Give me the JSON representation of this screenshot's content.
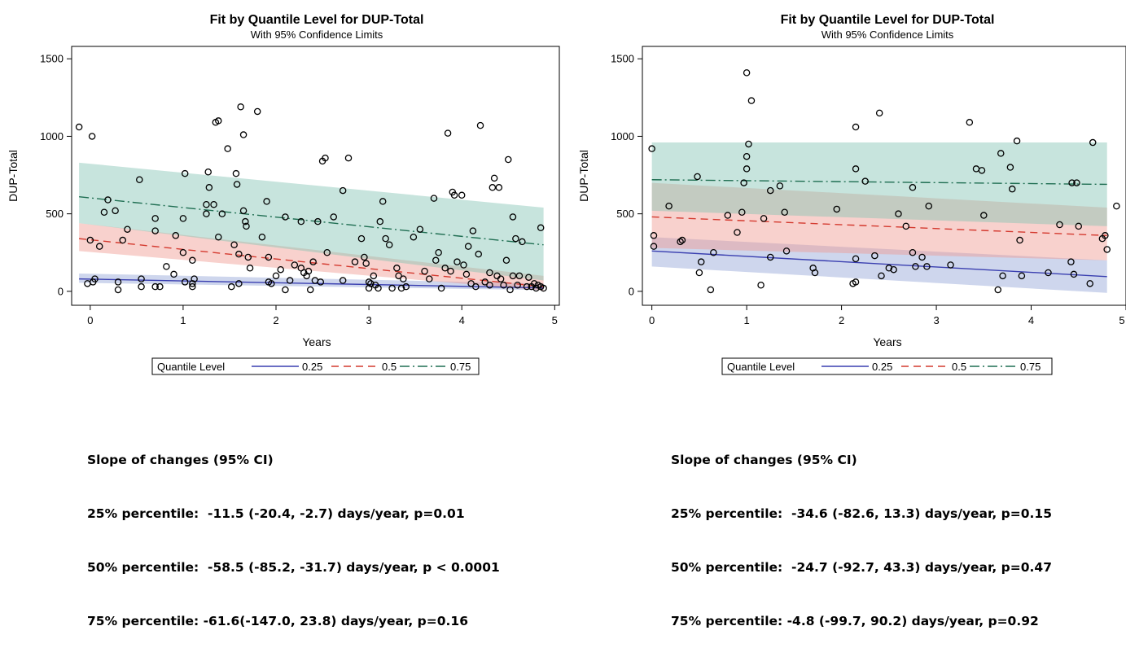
{
  "chart_data": [
    {
      "type": "scatter",
      "title": "Fit by Quantile Level for DUP-Total",
      "subtitle": "With 95% Confidence Limits",
      "xlabel": "Years",
      "ylabel": "DUP-Total",
      "xlim": [
        -0.2,
        5.05
      ],
      "ylim": [
        -90,
        1580
      ],
      "xticks": [
        "0",
        "1",
        "2",
        "3",
        "4",
        "5"
      ],
      "yticks": [
        "0",
        "500",
        "1000",
        "1500"
      ],
      "legend_title": "Quantile Level",
      "legend_position": "bottom",
      "fits": [
        {
          "name": "0.25",
          "color": "#3a3fb0",
          "dash": "solid",
          "x": [
            -0.12,
            4.88
          ],
          "y": [
            80,
            22
          ],
          "band_low": [
            55,
            8
          ],
          "band_high": [
            115,
            50
          ],
          "band_color": "#93a3d8"
        },
        {
          "name": "0.5",
          "color": "#d43a2f",
          "dash": "dashed",
          "x": [
            -0.12,
            4.88
          ],
          "y": [
            340,
            30
          ],
          "band_low": [
            260,
            5
          ],
          "band_high": [
            440,
            100
          ],
          "band_color": "#ef9a90"
        },
        {
          "name": "0.75",
          "color": "#1f6e52",
          "dash": "dashdot",
          "x": [
            -0.12,
            4.88
          ],
          "y": [
            610,
            300
          ],
          "band_low": [
            440,
            70
          ],
          "band_high": [
            830,
            540
          ],
          "band_color": "#82c3b4"
        }
      ],
      "points": [
        [
          -0.12,
          1060
        ],
        [
          0.02,
          1000
        ],
        [
          -0.03,
          50
        ],
        [
          0.0,
          330
        ],
        [
          0.03,
          60
        ],
        [
          0.05,
          80
        ],
        [
          0.1,
          290
        ],
        [
          0.15,
          510
        ],
        [
          0.19,
          590
        ],
        [
          0.27,
          520
        ],
        [
          0.3,
          60
        ],
        [
          0.3,
          10
        ],
        [
          0.35,
          330
        ],
        [
          0.4,
          400
        ],
        [
          0.53,
          720
        ],
        [
          0.55,
          80
        ],
        [
          0.55,
          30
        ],
        [
          0.7,
          470
        ],
        [
          0.7,
          390
        ],
        [
          0.7,
          30
        ],
        [
          0.75,
          30
        ],
        [
          0.82,
          160
        ],
        [
          0.9,
          110
        ],
        [
          0.92,
          360
        ],
        [
          1.0,
          470
        ],
        [
          1.02,
          760
        ],
        [
          1.0,
          250
        ],
        [
          1.02,
          60
        ],
        [
          1.1,
          200
        ],
        [
          1.1,
          30
        ],
        [
          1.1,
          50
        ],
        [
          1.12,
          80
        ],
        [
          1.25,
          560
        ],
        [
          1.25,
          500
        ],
        [
          1.27,
          770
        ],
        [
          1.28,
          670
        ],
        [
          1.33,
          560
        ],
        [
          1.35,
          1090
        ],
        [
          1.38,
          1100
        ],
        [
          1.38,
          350
        ],
        [
          1.42,
          500
        ],
        [
          1.48,
          920
        ],
        [
          1.52,
          30
        ],
        [
          1.55,
          300
        ],
        [
          1.57,
          760
        ],
        [
          1.58,
          690
        ],
        [
          1.6,
          240
        ],
        [
          1.6,
          50
        ],
        [
          1.62,
          1190
        ],
        [
          1.65,
          1010
        ],
        [
          1.65,
          520
        ],
        [
          1.67,
          450
        ],
        [
          1.68,
          420
        ],
        [
          1.7,
          220
        ],
        [
          1.72,
          150
        ],
        [
          1.8,
          1160
        ],
        [
          1.85,
          350
        ],
        [
          1.9,
          580
        ],
        [
          1.92,
          60
        ],
        [
          1.92,
          220
        ],
        [
          1.95,
          50
        ],
        [
          2.0,
          100
        ],
        [
          2.05,
          140
        ],
        [
          2.1,
          10
        ],
        [
          2.1,
          480
        ],
        [
          2.15,
          70
        ],
        [
          2.2,
          170
        ],
        [
          2.27,
          450
        ],
        [
          2.27,
          150
        ],
        [
          2.3,
          120
        ],
        [
          2.33,
          100
        ],
        [
          2.35,
          130
        ],
        [
          2.37,
          10
        ],
        [
          2.4,
          190
        ],
        [
          2.42,
          70
        ],
        [
          2.45,
          450
        ],
        [
          2.48,
          60
        ],
        [
          2.5,
          840
        ],
        [
          2.53,
          860
        ],
        [
          2.55,
          250
        ],
        [
          2.62,
          480
        ],
        [
          2.72,
          650
        ],
        [
          2.72,
          70
        ],
        [
          2.78,
          860
        ],
        [
          2.85,
          190
        ],
        [
          2.92,
          340
        ],
        [
          2.95,
          220
        ],
        [
          2.97,
          180
        ],
        [
          3.0,
          60
        ],
        [
          3.0,
          20
        ],
        [
          3.02,
          50
        ],
        [
          3.05,
          100
        ],
        [
          3.07,
          40
        ],
        [
          3.1,
          20
        ],
        [
          3.12,
          450
        ],
        [
          3.15,
          580
        ],
        [
          3.18,
          340
        ],
        [
          3.22,
          300
        ],
        [
          3.25,
          20
        ],
        [
          3.3,
          150
        ],
        [
          3.32,
          100
        ],
        [
          3.35,
          20
        ],
        [
          3.37,
          80
        ],
        [
          3.4,
          30
        ],
        [
          3.48,
          350
        ],
        [
          3.55,
          400
        ],
        [
          3.6,
          130
        ],
        [
          3.65,
          80
        ],
        [
          3.7,
          600
        ],
        [
          3.72,
          200
        ],
        [
          3.75,
          250
        ],
        [
          3.78,
          20
        ],
        [
          3.82,
          150
        ],
        [
          3.85,
          1020
        ],
        [
          3.88,
          130
        ],
        [
          3.9,
          640
        ],
        [
          3.92,
          620
        ],
        [
          3.95,
          190
        ],
        [
          4.0,
          620
        ],
        [
          4.02,
          170
        ],
        [
          4.05,
          110
        ],
        [
          4.07,
          290
        ],
        [
          4.1,
          50
        ],
        [
          4.12,
          390
        ],
        [
          4.15,
          30
        ],
        [
          4.18,
          240
        ],
        [
          4.2,
          1070
        ],
        [
          4.25,
          60
        ],
        [
          4.3,
          120
        ],
        [
          4.3,
          40
        ],
        [
          4.33,
          670
        ],
        [
          4.35,
          730
        ],
        [
          4.38,
          100
        ],
        [
          4.4,
          670
        ],
        [
          4.42,
          80
        ],
        [
          4.45,
          40
        ],
        [
          4.48,
          200
        ],
        [
          4.5,
          850
        ],
        [
          4.52,
          10
        ],
        [
          4.55,
          480
        ],
        [
          4.55,
          100
        ],
        [
          4.58,
          340
        ],
        [
          4.6,
          40
        ],
        [
          4.62,
          100
        ],
        [
          4.65,
          320
        ],
        [
          4.7,
          30
        ],
        [
          4.72,
          90
        ],
        [
          4.75,
          30
        ],
        [
          4.78,
          50
        ],
        [
          4.8,
          20
        ],
        [
          4.82,
          40
        ],
        [
          4.85,
          30
        ],
        [
          4.85,
          410
        ],
        [
          4.88,
          20
        ]
      ]
    },
    {
      "type": "scatter",
      "title": "Fit by Quantile Level for DUP-Total",
      "subtitle": "With 95% Confidence Limits",
      "xlabel": "Years",
      "ylabel": "DUP-Total",
      "xlim": [
        -0.1,
        5.0
      ],
      "ylim": [
        -90,
        1580
      ],
      "xticks": [
        "0",
        "1",
        "2",
        "3",
        "4",
        "5"
      ],
      "yticks": [
        "0",
        "500",
        "1000",
        "1500"
      ],
      "legend_title": "Quantile Level",
      "legend_position": "bottom",
      "fits": [
        {
          "name": "0.25",
          "color": "#3a3fb0",
          "dash": "solid",
          "x": [
            0.0,
            4.8
          ],
          "y": [
            260,
            95
          ],
          "band_low": [
            160,
            -10
          ],
          "band_high": [
            350,
            200
          ],
          "band_color": "#93a3d8"
        },
        {
          "name": "0.5",
          "color": "#d43a2f",
          "dash": "dashed",
          "x": [
            0.0,
            4.8
          ],
          "y": [
            480,
            360
          ],
          "band_low": [
            280,
            200
          ],
          "band_high": [
            700,
            540
          ],
          "band_color": "#ef9a90"
        },
        {
          "name": "0.75",
          "color": "#1f6e52",
          "dash": "dashdot",
          "x": [
            0.0,
            4.8
          ],
          "y": [
            720,
            690
          ],
          "band_low": [
            520,
            420
          ],
          "band_high": [
            960,
            960
          ],
          "band_color": "#82c3b4"
        }
      ],
      "points": [
        [
          0.0,
          920
        ],
        [
          0.02,
          360
        ],
        [
          0.02,
          290
        ],
        [
          0.18,
          550
        ],
        [
          0.3,
          320
        ],
        [
          0.32,
          330
        ],
        [
          0.48,
          740
        ],
        [
          0.5,
          120
        ],
        [
          0.52,
          190
        ],
        [
          0.62,
          10
        ],
        [
          0.65,
          250
        ],
        [
          0.8,
          490
        ],
        [
          0.9,
          380
        ],
        [
          0.95,
          510
        ],
        [
          0.97,
          700
        ],
        [
          1.0,
          790
        ],
        [
          1.0,
          870
        ],
        [
          1.0,
          1410
        ],
        [
          1.02,
          950
        ],
        [
          1.05,
          1230
        ],
        [
          1.15,
          40
        ],
        [
          1.18,
          470
        ],
        [
          1.25,
          220
        ],
        [
          1.25,
          650
        ],
        [
          1.35,
          680
        ],
        [
          1.4,
          510
        ],
        [
          1.42,
          260
        ],
        [
          1.7,
          150
        ],
        [
          1.72,
          120
        ],
        [
          1.95,
          530
        ],
        [
          2.12,
          50
        ],
        [
          2.15,
          60
        ],
        [
          2.15,
          210
        ],
        [
          2.15,
          790
        ],
        [
          2.15,
          1060
        ],
        [
          2.25,
          710
        ],
        [
          2.35,
          230
        ],
        [
          2.4,
          1150
        ],
        [
          2.42,
          100
        ],
        [
          2.5,
          150
        ],
        [
          2.55,
          140
        ],
        [
          2.6,
          500
        ],
        [
          2.68,
          420
        ],
        [
          2.75,
          670
        ],
        [
          2.75,
          250
        ],
        [
          2.78,
          160
        ],
        [
          2.85,
          220
        ],
        [
          2.9,
          160
        ],
        [
          2.92,
          550
        ],
        [
          3.15,
          170
        ],
        [
          3.35,
          1090
        ],
        [
          3.42,
          790
        ],
        [
          3.48,
          780
        ],
        [
          3.5,
          490
        ],
        [
          3.65,
          10
        ],
        [
          3.68,
          890
        ],
        [
          3.7,
          100
        ],
        [
          3.78,
          800
        ],
        [
          3.8,
          660
        ],
        [
          3.85,
          970
        ],
        [
          3.88,
          330
        ],
        [
          3.9,
          100
        ],
        [
          4.18,
          120
        ],
        [
          4.3,
          430
        ],
        [
          4.42,
          190
        ],
        [
          4.43,
          700
        ],
        [
          4.45,
          110
        ],
        [
          4.48,
          700
        ],
        [
          4.5,
          420
        ],
        [
          4.62,
          50
        ],
        [
          4.65,
          960
        ],
        [
          4.75,
          340
        ],
        [
          4.78,
          360
        ],
        [
          4.8,
          270
        ],
        [
          4.9,
          550
        ]
      ]
    }
  ],
  "stats": [
    {
      "heading": "Slope of changes (95% CI)",
      "lines": [
        "25% percentile:  -11.5 (-20.4, -2.7) days/year, p=0.01",
        "50% percentile:  -58.5 (-85.2, -31.7) days/year, p < 0.0001",
        "75% percentile: -61.6(-147.0, 23.8) days/year, p=0.16"
      ]
    },
    {
      "heading": "Slope of changes (95% CI)",
      "lines": [
        "25% percentile:  -34.6 (-82.6, 13.3) days/year, p=0.15",
        "50% percentile:  -24.7 (-92.7, 43.3) days/year, p=0.47",
        "75% percentile: -4.8 (-99.7, 90.2) days/year, p=0.92"
      ]
    }
  ]
}
